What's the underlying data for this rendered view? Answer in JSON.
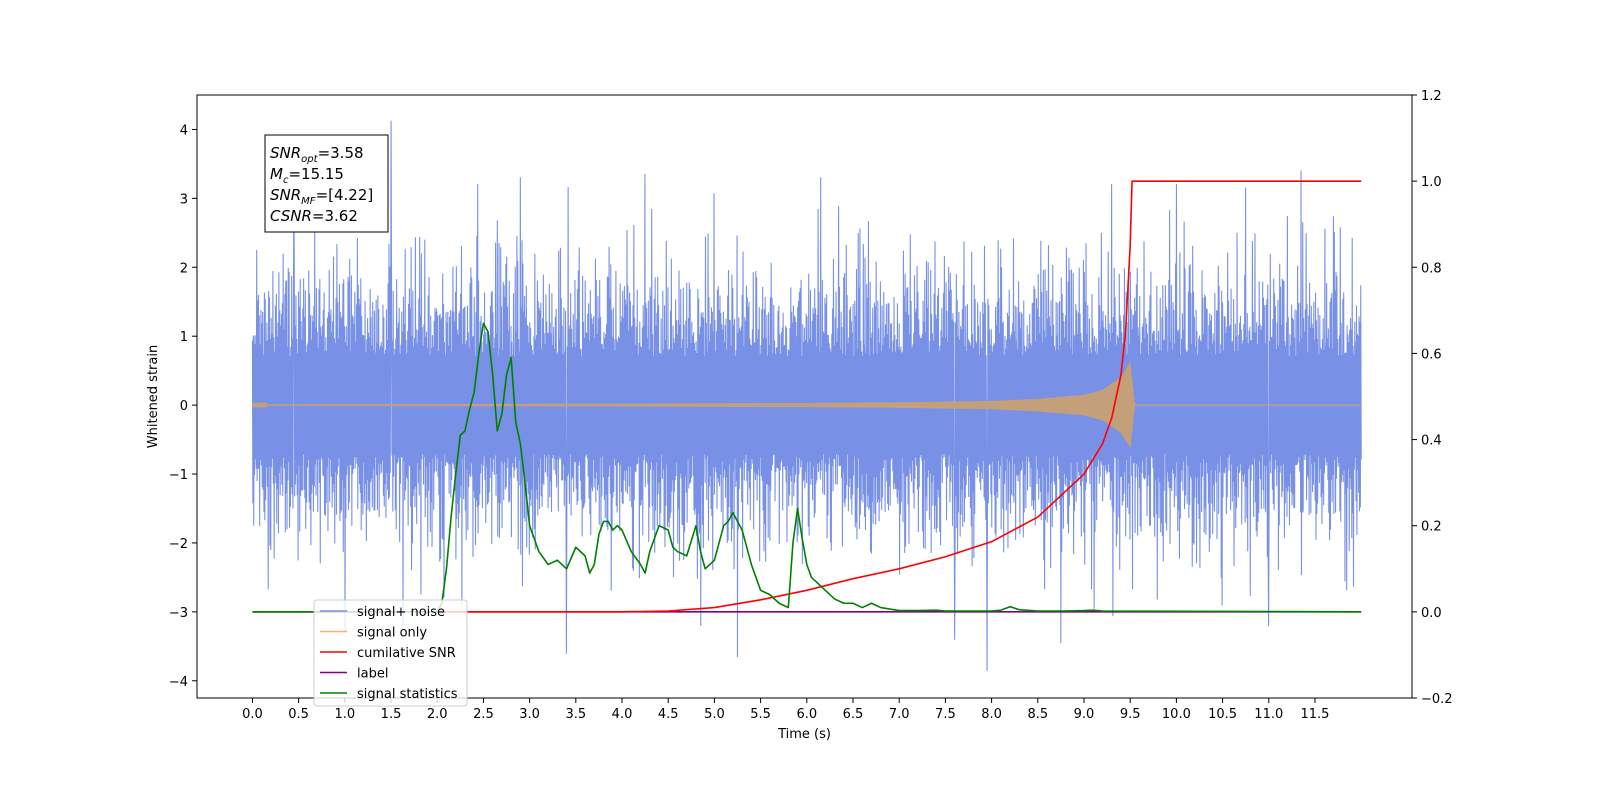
{
  "chart_data": {
    "type": "line",
    "title": "",
    "xlabel": "Time (s)",
    "ylabel": "Whitened strain",
    "xlim": [
      -0.6,
      12.55
    ],
    "ylim": [
      -4.25,
      4.5
    ],
    "y2lim": [
      -0.2,
      1.2
    ],
    "grid": false,
    "legend_position": "lower-left",
    "x_ticks": [
      "0.0",
      "0.5",
      "1.0",
      "1.5",
      "2.0",
      "2.5",
      "3.0",
      "3.5",
      "4.0",
      "4.5",
      "5.0",
      "5.5",
      "6.0",
      "6.5",
      "7.0",
      "7.5",
      "8.0",
      "8.5",
      "9.0",
      "9.5",
      "10.0",
      "10.5",
      "11.0",
      "11.5"
    ],
    "y_ticks": [
      "−4",
      "−3",
      "−2",
      "−1",
      "0",
      "1",
      "2",
      "3",
      "4"
    ],
    "y2_ticks": [
      "−0.2",
      "0.0",
      "0.2",
      "0.4",
      "0.6",
      "0.8",
      "1.0",
      "1.2"
    ],
    "annotation": {
      "lines": [
        {
          "var": "SNR",
          "sub": "opt",
          "value": "=3.58"
        },
        {
          "var": "M",
          "sub": "c",
          "value": "=15.15"
        },
        {
          "var": "SNR",
          "sub": "MF",
          "value": "=[4.22]"
        },
        {
          "var": "CSNR",
          "sub": "",
          "value": "=3.62"
        }
      ]
    },
    "colors": {
      "noise": "#7891e6",
      "signal": "#f5b461",
      "signal_overlap": "#c39f7a",
      "cumulative": "#ff0000",
      "label": "#800080",
      "statistics": "#008000"
    },
    "series": [
      {
        "name": "signal+ noise",
        "axis": "left",
        "description_shape": "dense noise band roughly ±1.5 with spikes",
        "x_range": [
          0.0,
          12.0
        ],
        "envelope": {
          "core": 1.5,
          "max": 4.1,
          "min": -3.85
        },
        "spikes": [
          {
            "x": 1.5,
            "y": 4.12
          },
          {
            "x": 11.35,
            "y": 3.4
          },
          {
            "x": 2.9,
            "y": 3.3
          },
          {
            "x": 4.25,
            "y": 3.35
          },
          {
            "x": 6.15,
            "y": 3.3
          },
          {
            "x": 0.45,
            "y": 3.1
          },
          {
            "x": 9.3,
            "y": 3.2
          },
          {
            "x": 10.75,
            "y": 3.15
          },
          {
            "x": 7.95,
            "y": -3.85
          },
          {
            "x": 8.75,
            "y": -3.45
          },
          {
            "x": 3.4,
            "y": -3.6
          },
          {
            "x": 5.25,
            "y": -3.65
          },
          {
            "x": 1.0,
            "y": -3.3
          },
          {
            "x": 7.6,
            "y": -3.4
          },
          {
            "x": 11.0,
            "y": -3.2
          }
        ]
      },
      {
        "name": "signal only",
        "axis": "left",
        "description_shape": "chirp growing until merger near 9.5 s",
        "x": [
          0.0,
          2.0,
          4.0,
          6.0,
          7.0,
          8.0,
          8.5,
          9.0,
          9.2,
          9.4,
          9.5,
          9.55,
          12.0
        ],
        "amplitude": [
          0.01,
          0.015,
          0.02,
          0.03,
          0.04,
          0.06,
          0.09,
          0.15,
          0.22,
          0.4,
          0.62,
          0.0,
          0.0
        ]
      },
      {
        "name": "cumilative SNR",
        "axis": "right",
        "x": [
          0.0,
          4.0,
          4.5,
          5.0,
          5.5,
          6.0,
          6.5,
          7.0,
          7.5,
          8.0,
          8.5,
          9.0,
          9.2,
          9.3,
          9.4,
          9.45,
          9.5,
          9.52,
          12.0
        ],
        "y": [
          0.0,
          0.0,
          0.002,
          0.01,
          0.028,
          0.05,
          0.077,
          0.1,
          0.128,
          0.163,
          0.22,
          0.32,
          0.39,
          0.45,
          0.55,
          0.65,
          0.85,
          1.0,
          1.0
        ]
      },
      {
        "name": "label",
        "axis": "right",
        "x": [
          0.0,
          12.0
        ],
        "y": [
          0.0,
          0.0
        ]
      },
      {
        "name": "signal statistics",
        "axis": "right",
        "x": [
          0.0,
          2.0,
          2.05,
          2.1,
          2.15,
          2.2,
          2.25,
          2.3,
          2.35,
          2.4,
          2.45,
          2.5,
          2.55,
          2.6,
          2.65,
          2.7,
          2.75,
          2.8,
          2.85,
          2.9,
          2.95,
          3.0,
          3.1,
          3.2,
          3.3,
          3.4,
          3.5,
          3.6,
          3.65,
          3.7,
          3.75,
          3.8,
          3.85,
          3.9,
          3.95,
          4.0,
          4.1,
          4.2,
          4.25,
          4.3,
          4.4,
          4.5,
          4.55,
          4.6,
          4.7,
          4.8,
          4.85,
          4.9,
          5.0,
          5.1,
          5.15,
          5.2,
          5.3,
          5.4,
          5.5,
          5.6,
          5.7,
          5.8,
          5.85,
          5.9,
          5.95,
          6.0,
          6.05,
          6.1,
          6.2,
          6.3,
          6.4,
          6.5,
          6.6,
          6.7,
          6.8,
          7.0,
          7.2,
          7.4,
          7.5,
          7.6,
          8.0,
          8.1,
          8.2,
          8.3,
          8.5,
          8.8,
          9.0,
          9.1,
          9.2,
          12.0
        ],
        "y": [
          0.0,
          0.0,
          0.02,
          0.1,
          0.22,
          0.32,
          0.41,
          0.42,
          0.47,
          0.51,
          0.6,
          0.67,
          0.65,
          0.55,
          0.42,
          0.46,
          0.55,
          0.59,
          0.44,
          0.39,
          0.3,
          0.2,
          0.14,
          0.11,
          0.12,
          0.1,
          0.15,
          0.13,
          0.09,
          0.11,
          0.18,
          0.21,
          0.21,
          0.19,
          0.2,
          0.19,
          0.14,
          0.11,
          0.09,
          0.14,
          0.2,
          0.19,
          0.15,
          0.14,
          0.13,
          0.2,
          0.14,
          0.1,
          0.12,
          0.2,
          0.21,
          0.23,
          0.19,
          0.11,
          0.05,
          0.04,
          0.02,
          0.01,
          0.16,
          0.24,
          0.17,
          0.11,
          0.08,
          0.07,
          0.05,
          0.03,
          0.02,
          0.02,
          0.01,
          0.02,
          0.01,
          0.003,
          0.003,
          0.004,
          0.002,
          0.002,
          0.002,
          0.004,
          0.012,
          0.005,
          0.002,
          0.002,
          0.003,
          0.004,
          0.002,
          0.0
        ]
      }
    ],
    "legend": [
      {
        "label": "signal+ noise",
        "color": "#7891e6"
      },
      {
        "label": "signal only",
        "color": "#f5b461"
      },
      {
        "label": "cumilative SNR",
        "color": "#ff0000"
      },
      {
        "label": "label",
        "color": "#800080"
      },
      {
        "label": "signal statistics",
        "color": "#008000"
      }
    ]
  }
}
